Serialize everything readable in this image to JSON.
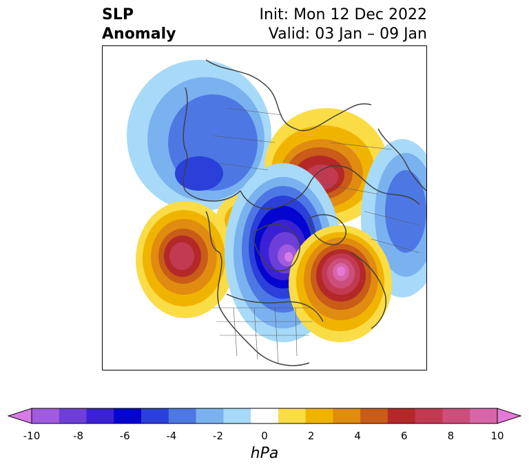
{
  "header": {
    "variable_line1": "SLP",
    "variable_line2": "Anomaly",
    "init_text": "Init: Mon 12 Dec 2022",
    "valid_text": "Valid: 03 Jan – 09 Jan"
  },
  "colorbar": {
    "unit": "hPa",
    "ticks": [
      "-10",
      "-8",
      "-6",
      "-4",
      "-2",
      "0",
      "2",
      "4",
      "6",
      "8",
      "10"
    ],
    "colors": [
      "#d67be8",
      "#a05be0",
      "#6e3fd8",
      "#3a22d4",
      "#0505d0",
      "#2a40d8",
      "#4d78e4",
      "#7ab2f0",
      "#a6daf8",
      "#ffffff",
      "#fadc46",
      "#f0b400",
      "#e08c10",
      "#c85c18",
      "#b42828",
      "#c23a52",
      "#cc4e7a",
      "#d666a8",
      "#e47ad6"
    ],
    "extend": "both"
  },
  "map": {
    "projection": "north-polar-stereographic",
    "coastline_color": "#404040",
    "features": [
      {
        "name": "anomaly-low-north-atlantic-pole",
        "sign": "negative",
        "peak_hpa": -10
      },
      {
        "name": "anomaly-high-barents-scandinavia",
        "sign": "positive",
        "peak_hpa": 8
      },
      {
        "name": "anomaly-high-north-pacific",
        "sign": "positive",
        "peak_hpa": 8
      },
      {
        "name": "anomaly-high-siberia-east",
        "sign": "positive",
        "peak_hpa": 10
      },
      {
        "name": "anomaly-low-north-america",
        "sign": "negative",
        "peak_hpa": -6
      },
      {
        "name": "anomaly-low-western-atlantic",
        "sign": "negative",
        "peak_hpa": -4
      }
    ]
  }
}
